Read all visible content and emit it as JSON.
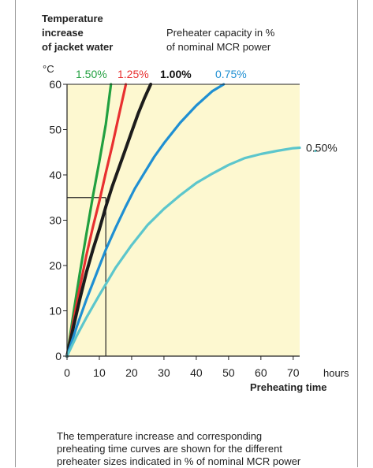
{
  "figure": {
    "ytitle_lines": [
      "Temperature",
      "increase",
      "of jacket water"
    ],
    "legend_title_lines": [
      "Preheater capacity in %",
      "of nominal MCR power"
    ],
    "yunit": "°C",
    "xunit": "hours",
    "xlabel": "Preheating time",
    "caption_lines": [
      "The temperature increase and corresponding",
      "preheating time curves are shown for the different",
      "preheater sizes indicated in % of nominal MCR power"
    ]
  },
  "chart_data": {
    "type": "line",
    "title": "",
    "xlabel": "Preheating time",
    "ylabel": "Temperature increase of jacket water",
    "xunit": "hours",
    "yunit": "°C",
    "xlim": [
      0,
      72
    ],
    "ylim": [
      0,
      60
    ],
    "xticks": [
      0,
      10,
      20,
      30,
      40,
      50,
      60,
      70
    ],
    "yticks": [
      0,
      10,
      20,
      30,
      40,
      50,
      60
    ],
    "grid": false,
    "background_color": "#fdf8d0",
    "reference_point": {
      "x": 12,
      "y": 35
    },
    "series": [
      {
        "name": "1.50%",
        "color": "#22a040",
        "label_weight": "normal",
        "x": [
          0,
          2,
          4,
          6,
          8,
          10,
          12,
          13.6
        ],
        "y": [
          0,
          9.5,
          18.5,
          27,
          35.3,
          43,
          51.2,
          60
        ]
      },
      {
        "name": "1.25%",
        "color": "#e83030",
        "label_weight": "normal",
        "x": [
          0,
          2,
          4,
          6,
          8,
          10,
          12,
          14,
          16,
          18.2
        ],
        "y": [
          0,
          7.8,
          15.3,
          22.3,
          28.5,
          34.2,
          40.5,
          46.5,
          53,
          60
        ]
      },
      {
        "name": "1.00%",
        "color": "#1c1c1c",
        "label_weight": "bold",
        "x": [
          0,
          2,
          4,
          6,
          8,
          10,
          12,
          14,
          16,
          18,
          20,
          22,
          24,
          25.9
        ],
        "y": [
          0,
          6.5,
          12.7,
          18.5,
          23.5,
          28,
          33,
          37.5,
          41.5,
          45.5,
          49.5,
          53.5,
          57,
          60
        ]
      },
      {
        "name": "0.75%",
        "color": "#1f8fd2",
        "label_weight": "normal",
        "x": [
          0,
          3,
          6,
          9,
          12,
          15,
          18,
          21,
          24,
          27,
          30,
          35,
          40,
          45,
          48.5
        ],
        "y": [
          0,
          6.5,
          12.5,
          18,
          23.5,
          28.3,
          32.8,
          37,
          40.5,
          44,
          47,
          51.5,
          55.3,
          58.5,
          60
        ]
      },
      {
        "name": "0.50%",
        "color": "#5cc6cc",
        "label_weight": "normal",
        "x": [
          0,
          3,
          6,
          10,
          15,
          20,
          25,
          30,
          35,
          40,
          45,
          50,
          55,
          60,
          65,
          70,
          72
        ],
        "y": [
          0,
          4.5,
          8.5,
          13.5,
          19.5,
          24.5,
          29,
          32.5,
          35.5,
          38.2,
          40.3,
          42.2,
          43.7,
          44.6,
          45.3,
          45.9,
          46
        ]
      }
    ]
  }
}
